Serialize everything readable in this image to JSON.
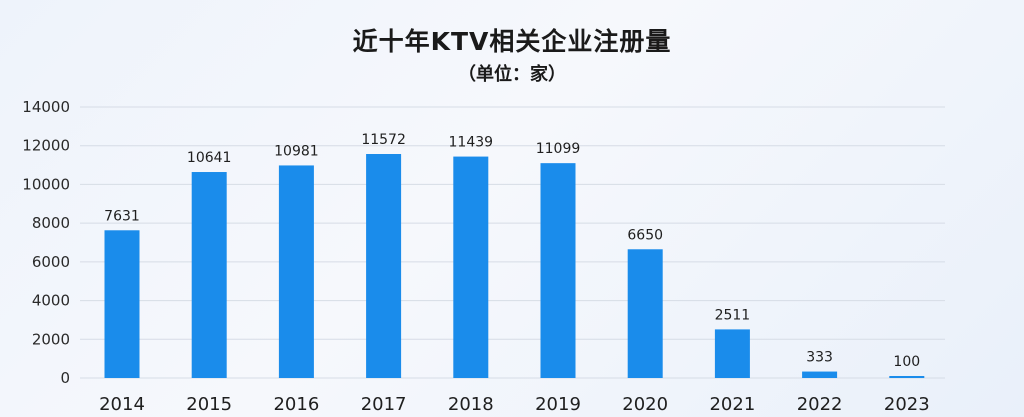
{
  "chart_data": {
    "type": "bar",
    "title": "近十年KTV相关企业注册量",
    "subtitle": "（单位：家）",
    "categories": [
      "2014",
      "2015",
      "2016",
      "2017",
      "2018",
      "2019",
      "2020",
      "2021",
      "2022",
      "2023"
    ],
    "values": [
      7631,
      10641,
      10981,
      11572,
      11439,
      11099,
      6650,
      2511,
      333,
      100
    ],
    "ylim": [
      0,
      14000
    ],
    "yticks": [
      0,
      2000,
      4000,
      6000,
      8000,
      10000,
      12000,
      14000
    ],
    "grid": true,
    "bar_color": "#1a8ceb",
    "grid_color": "#d6dce6"
  }
}
